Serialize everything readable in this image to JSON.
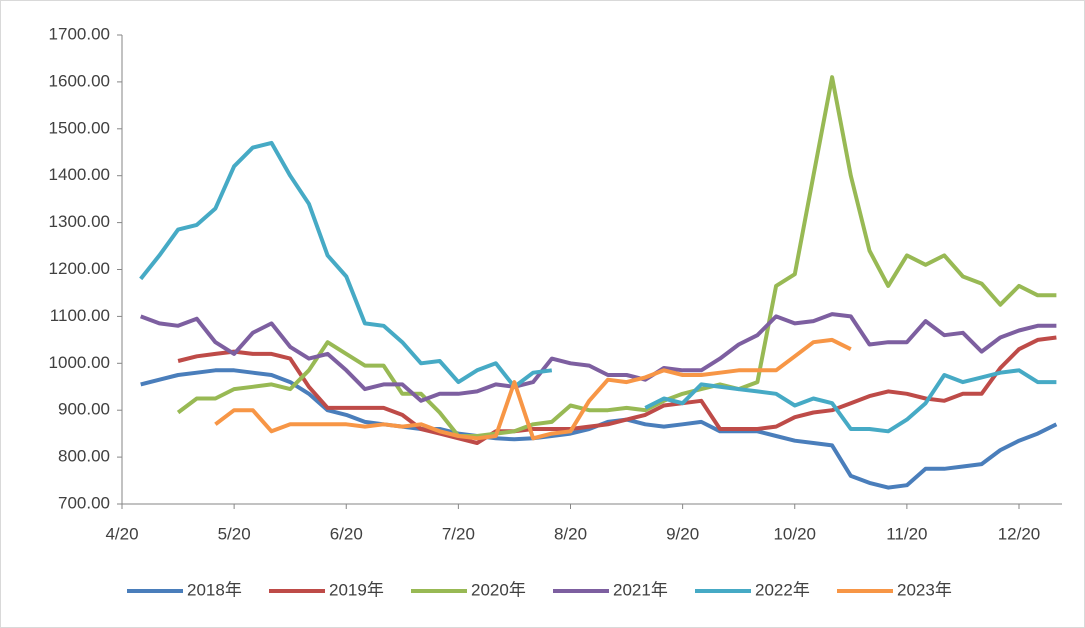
{
  "chart_data": {
    "type": "line",
    "categories": [
      "4/20",
      null,
      null,
      null,
      null,
      null,
      "5/20",
      null,
      null,
      null,
      null,
      null,
      "6/20",
      null,
      null,
      null,
      null,
      null,
      "7/20",
      null,
      null,
      null,
      null,
      null,
      "8/20",
      null,
      null,
      null,
      null,
      null,
      "9/20",
      null,
      null,
      null,
      null,
      null,
      "10/20",
      null,
      null,
      null,
      null,
      null,
      "11/20",
      null,
      null,
      null,
      null,
      null,
      "12/20",
      null,
      null
    ],
    "ylim": [
      700,
      1700
    ],
    "yticks": [
      {
        "value": 700,
        "label": "700.00"
      },
      {
        "value": 800,
        "label": "800.00"
      },
      {
        "value": 900,
        "label": "900.00"
      },
      {
        "value": 1000,
        "label": "1000.00"
      },
      {
        "value": 1100,
        "label": "1100.00"
      },
      {
        "value": 1200,
        "label": "1200.00"
      },
      {
        "value": 1300,
        "label": "1300.00"
      },
      {
        "value": 1400,
        "label": "1400.00"
      },
      {
        "value": 1500,
        "label": "1500.00"
      },
      {
        "value": 1600,
        "label": "1600.00"
      },
      {
        "value": 1700,
        "label": "1700.00"
      }
    ],
    "grid": false,
    "legend": "bottom",
    "series": [
      {
        "name": "2018年",
        "color": "#4a7ebb",
        "values": [
          null,
          955,
          965,
          975,
          980,
          985,
          985,
          980,
          975,
          960,
          935,
          900,
          890,
          875,
          870,
          865,
          860,
          860,
          850,
          845,
          840,
          838,
          840,
          845,
          850,
          860,
          875,
          880,
          870,
          865,
          870,
          875,
          855,
          855,
          855,
          845,
          835,
          830,
          825,
          760,
          745,
          735,
          740,
          775,
          775,
          780,
          785,
          815,
          835,
          850,
          870
        ]
      },
      {
        "name": "2019年",
        "color": "#be4b48",
        "values": [
          null,
          null,
          null,
          1005,
          1015,
          1020,
          1025,
          1020,
          1020,
          1010,
          950,
          905,
          905,
          905,
          905,
          890,
          860,
          850,
          840,
          830,
          855,
          855,
          860,
          860,
          860,
          865,
          870,
          880,
          890,
          910,
          915,
          920,
          860,
          860,
          860,
          865,
          885,
          895,
          900,
          915,
          930,
          940,
          935,
          925,
          920,
          935,
          935,
          990,
          1030,
          1050,
          1055
        ]
      },
      {
        "name": "2020年",
        "color": "#98b954",
        "values": [
          null,
          null,
          null,
          895,
          925,
          925,
          945,
          950,
          955,
          945,
          985,
          1045,
          1020,
          995,
          995,
          935,
          935,
          895,
          845,
          845,
          850,
          855,
          870,
          875,
          910,
          900,
          900,
          905,
          900,
          920,
          935,
          945,
          955,
          945,
          960,
          1165,
          1190,
          1400,
          1610,
          1400,
          1240,
          1165,
          1230,
          1210,
          1230,
          1185,
          1170,
          1125,
          1165,
          1145,
          1145
        ]
      },
      {
        "name": "2021年",
        "color": "#7d5fa0",
        "values": [
          null,
          1100,
          1085,
          1080,
          1095,
          1045,
          1020,
          1065,
          1085,
          1035,
          1010,
          1020,
          985,
          945,
          955,
          955,
          920,
          935,
          935,
          940,
          955,
          950,
          960,
          1010,
          1000,
          995,
          975,
          975,
          965,
          990,
          985,
          985,
          1010,
          1040,
          1060,
          1100,
          1085,
          1090,
          1105,
          1100,
          1040,
          1045,
          1045,
          1090,
          1060,
          1065,
          1025,
          1055,
          1070,
          1080,
          1080
        ]
      },
      {
        "name": "2022年",
        "color": "#46aac5",
        "values": [
          null,
          1180,
          1230,
          1285,
          1295,
          1330,
          1420,
          1460,
          1470,
          1400,
          1340,
          1230,
          1185,
          1085,
          1080,
          1045,
          1000,
          1005,
          960,
          985,
          1000,
          950,
          980,
          985,
          null,
          null,
          null,
          null,
          905,
          925,
          915,
          955,
          950,
          945,
          940,
          935,
          910,
          925,
          915,
          860,
          860,
          855,
          880,
          915,
          975,
          960,
          970,
          980,
          985,
          960,
          960
        ]
      },
      {
        "name": "2023年",
        "color": "#f79646",
        "values": [
          null,
          null,
          null,
          null,
          null,
          870,
          900,
          900,
          855,
          870,
          870,
          870,
          870,
          865,
          870,
          865,
          870,
          855,
          845,
          840,
          845,
          960,
          840,
          850,
          855,
          920,
          965,
          960,
          970,
          985,
          975,
          975,
          980,
          985,
          985,
          985,
          1015,
          1045,
          1050,
          1030,
          null,
          null,
          null,
          null,
          null,
          null,
          null,
          null,
          null,
          null,
          null
        ]
      }
    ]
  }
}
